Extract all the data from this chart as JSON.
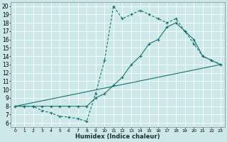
{
  "xlabel": "Humidex (Indice chaleur)",
  "xlim": [
    -0.5,
    23.5
  ],
  "ylim": [
    5.5,
    20.5
  ],
  "xticks": [
    0,
    1,
    2,
    3,
    4,
    5,
    6,
    7,
    8,
    9,
    10,
    11,
    12,
    13,
    14,
    15,
    16,
    17,
    18,
    19,
    20,
    21,
    22,
    23
  ],
  "yticks": [
    6,
    7,
    8,
    9,
    10,
    11,
    12,
    13,
    14,
    15,
    16,
    17,
    18,
    19,
    20
  ],
  "bg_color": "#cce8e8",
  "grid_color": "#ffffff",
  "line_color": "#1a7070",
  "line1_x": [
    0,
    1,
    2,
    3,
    4,
    5,
    6,
    7,
    8,
    9,
    10,
    11,
    12,
    13,
    14,
    15,
    16,
    17,
    18,
    19,
    20,
    21,
    22,
    23
  ],
  "line1_y": [
    8.0,
    8.0,
    8.0,
    7.5,
    7.2,
    6.8,
    6.7,
    6.5,
    6.2,
    9.5,
    13.5,
    20.0,
    18.5,
    19.0,
    19.5,
    19.0,
    18.5,
    18.0,
    18.5,
    17.0,
    15.5,
    14.0,
    13.5,
    13.0
  ],
  "line2_x": [
    0,
    1,
    2,
    3,
    4,
    5,
    6,
    7,
    8,
    9,
    10,
    11,
    12,
    13,
    14,
    15,
    16,
    17,
    18,
    19,
    20,
    21,
    22,
    23
  ],
  "line2_y": [
    8.0,
    8.0,
    8.0,
    8.0,
    8.0,
    8.0,
    8.0,
    8.0,
    8.0,
    9.0,
    9.5,
    10.5,
    11.5,
    13.0,
    14.0,
    15.5,
    16.0,
    17.5,
    18.0,
    17.0,
    16.0,
    14.0,
    13.5,
    13.0
  ],
  "line3_x": [
    0,
    23
  ],
  "line3_y": [
    8.0,
    13.0
  ]
}
